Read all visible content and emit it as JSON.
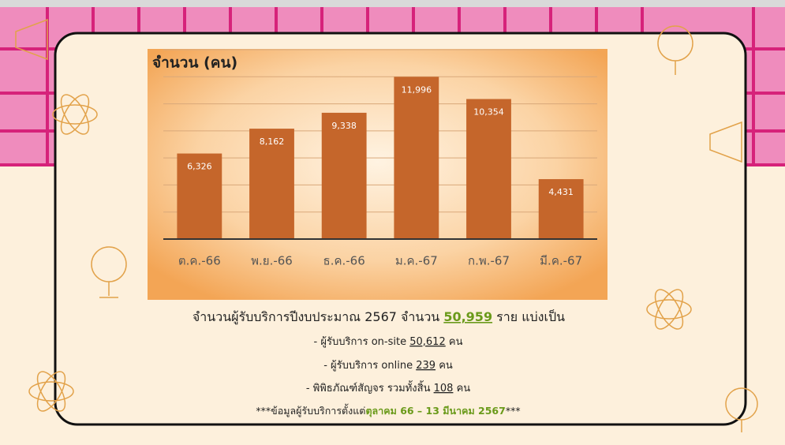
{
  "chart_data": {
    "type": "bar",
    "title": "จำนวน (คน)",
    "categories": [
      "ต.ค.-66",
      "พ.ย.-66",
      "ธ.ค.-66",
      "ม.ค.-67",
      "ก.พ.-67",
      "มี.ค.-67"
    ],
    "values": [
      6326,
      8162,
      9338,
      11996,
      10354,
      4431
    ],
    "value_labels": [
      "6,326",
      "8,162",
      "9,338",
      "11,996",
      "10,354",
      "4,431"
    ],
    "color": "#c5662b",
    "ylim": [
      0,
      14000
    ],
    "yticks": [
      0,
      2000,
      4000,
      6000,
      8000,
      10000,
      12000,
      14000
    ],
    "grid": true,
    "show_tick_labels": false
  },
  "summary": {
    "lead": "จำนวนผู้รับบริการปีงบประมาณ 2567 จำนวน",
    "total": "50,959",
    "tail": "ราย แบ่งเป็น",
    "items": [
      {
        "label": "- ผู้รับบริการ on-site",
        "value": "50,612",
        "unit": "คน"
      },
      {
        "label": "- ผู้รับบริการ online",
        "value": "239",
        "unit": "คน"
      },
      {
        "label": "- พิพิธภัณฑ์สัญจร รวมทั้งสิ้น",
        "value": "108",
        "unit": "คน"
      }
    ],
    "note_start": "***ข้อมูลผู้รับบริการตั้งแต่",
    "note_period": "ตุลาคม 66 – 13 มีนาคม 2567",
    "note_end": "***"
  }
}
